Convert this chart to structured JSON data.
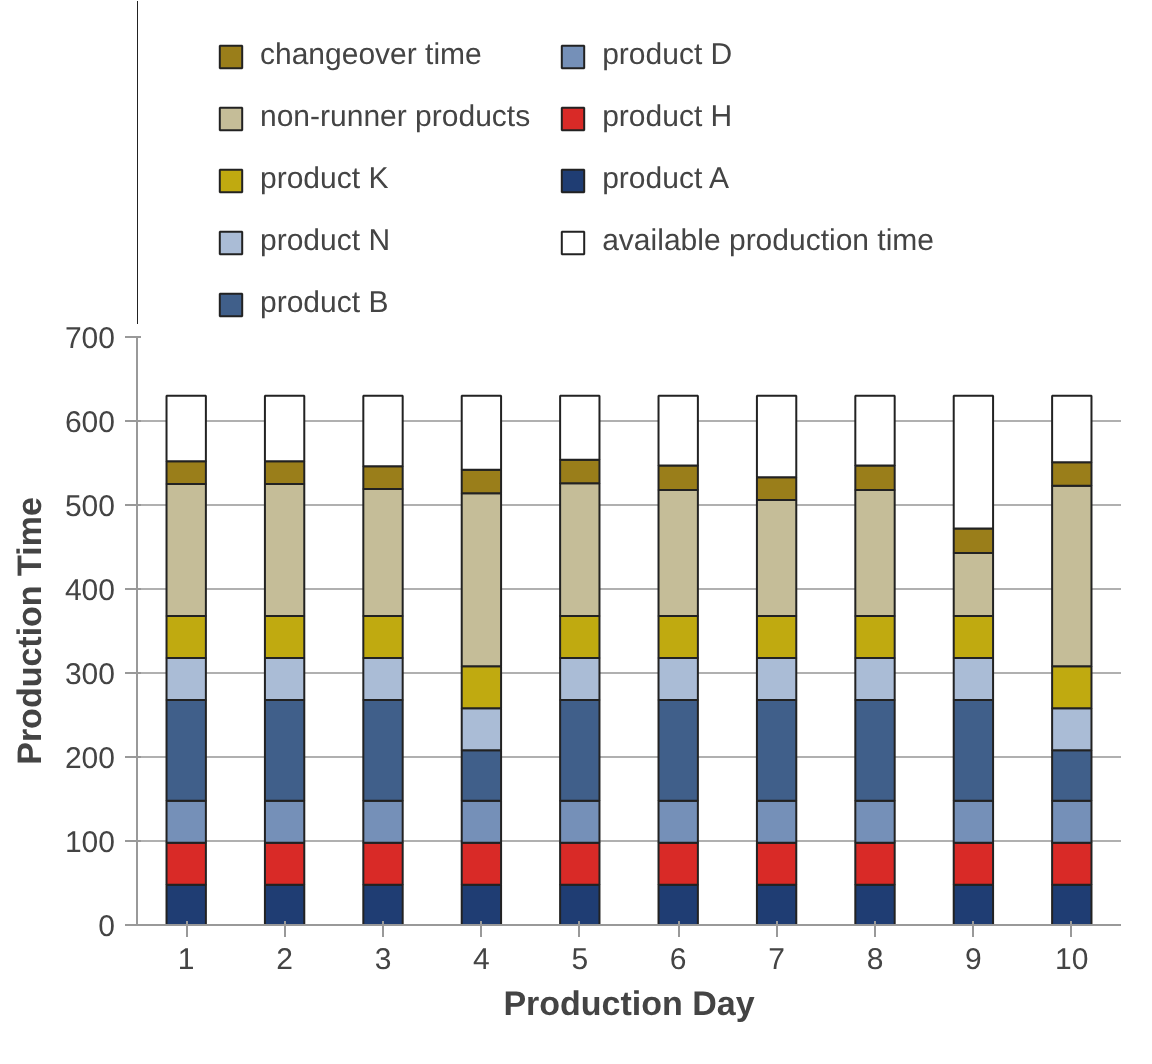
{
  "chart_data": {
    "type": "bar",
    "stacked": true,
    "xlabel": "Production Day",
    "ylabel": "Production Time",
    "categories": [
      "1",
      "2",
      "3",
      "4",
      "5",
      "6",
      "7",
      "8",
      "9",
      "10"
    ],
    "series": [
      {
        "name": "product A",
        "color": "#1f3d73",
        "values": [
          48,
          48,
          48,
          48,
          48,
          48,
          48,
          48,
          48,
          48
        ]
      },
      {
        "name": "product H",
        "color": "#d92a27",
        "values": [
          50,
          50,
          50,
          50,
          50,
          50,
          50,
          50,
          50,
          50
        ]
      },
      {
        "name": "product D",
        "color": "#7590b8",
        "values": [
          50,
          50,
          50,
          50,
          50,
          50,
          50,
          50,
          50,
          50
        ]
      },
      {
        "name": "product B",
        "color": "#405f8a",
        "values": [
          120,
          120,
          120,
          60,
          120,
          120,
          120,
          120,
          120,
          60
        ]
      },
      {
        "name": "product N",
        "color": "#aabcd6",
        "values": [
          50,
          50,
          50,
          50,
          50,
          50,
          50,
          50,
          50,
          50
        ]
      },
      {
        "name": "product K",
        "color": "#c0aa10",
        "values": [
          50,
          50,
          50,
          50,
          50,
          50,
          50,
          50,
          50,
          50
        ]
      },
      {
        "name": "non-runner products",
        "color": "#c5bd98",
        "values": [
          157,
          157,
          151,
          206,
          158,
          150,
          138,
          150,
          75,
          215
        ]
      },
      {
        "name": "changeover time",
        "color": "#9a7e1a",
        "values": [
          27,
          27,
          27,
          28,
          28,
          29,
          27,
          29,
          29,
          28
        ]
      },
      {
        "name": "available production time",
        "color": "#ffffff",
        "values": [
          78,
          78,
          84,
          88,
          76,
          83,
          97,
          83,
          158,
          79
        ]
      }
    ],
    "ylim": [
      0,
      700
    ],
    "yticks": [
      0,
      100,
      200,
      300,
      400,
      500,
      600,
      700
    ],
    "grid": "y",
    "legend": "top"
  }
}
